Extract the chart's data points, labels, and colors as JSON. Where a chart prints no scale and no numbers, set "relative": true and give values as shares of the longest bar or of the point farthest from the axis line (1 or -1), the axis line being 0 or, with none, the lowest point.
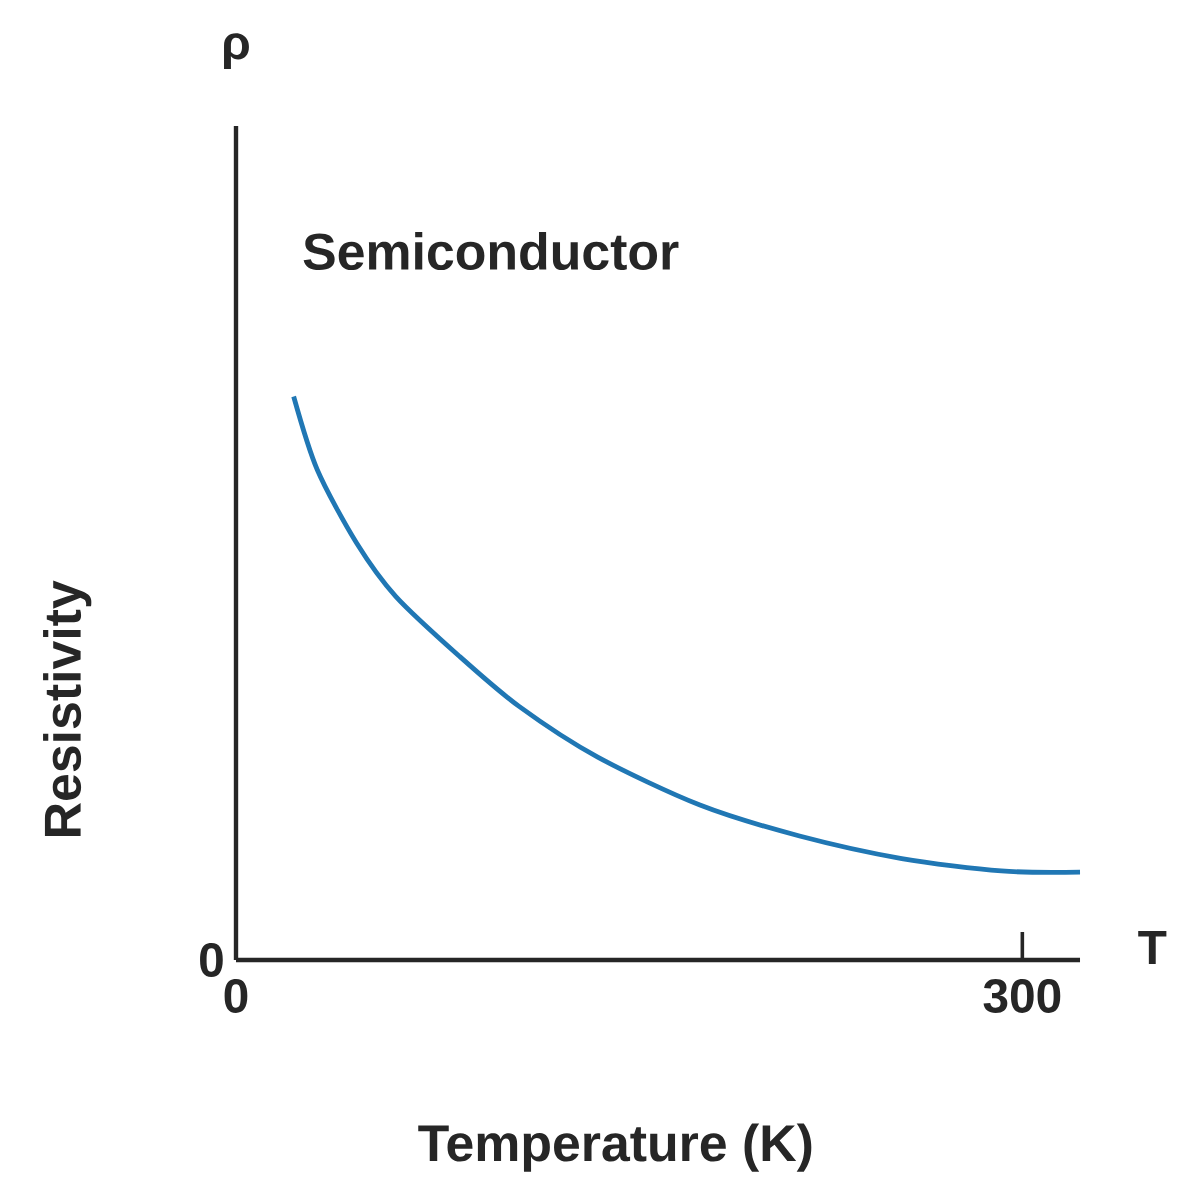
{
  "chart_data": {
    "type": "line",
    "title": "Semiconductor",
    "xlabel": "Temperature (K)",
    "ylabel": "Resistivity",
    "annotations": [
      "ρ",
      "T",
      "0"
    ],
    "relative": true,
    "xlim": [
      0,
      322
    ],
    "xticks": [
      0,
      300
    ],
    "grid": false,
    "series": [
      {
        "color": "#2077b4",
        "x": [
          22,
          31,
          46,
          61,
          85,
          108,
          138,
          177,
          215,
          254,
          292,
          322
        ],
        "values": [
          1.0,
          0.87,
          0.74,
          0.645,
          0.54,
          0.45,
          0.36,
          0.275,
          0.22,
          0.18,
          0.158,
          0.156
        ]
      }
    ]
  }
}
